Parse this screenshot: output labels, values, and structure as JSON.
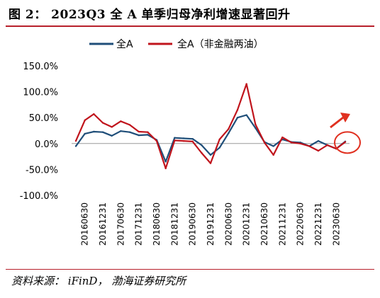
{
  "title": "图 2：  2023Q3 全 A 单季归母净利增速显著回升",
  "source": "资料来源：  iFinD，  渤海证券研究所",
  "colors": {
    "all_a": "#1f4e79",
    "ex_fin": "#c0141c",
    "rule": "#b8202b",
    "highlight": "#e03020"
  },
  "chart_data": {
    "type": "line",
    "title": "",
    "xlabel": "",
    "ylabel": "",
    "ylim": [
      -100,
      150
    ],
    "yticks": [
      150,
      100,
      50,
      0,
      -50,
      -100
    ],
    "ytick_labels": [
      "150.0%",
      "100.0%",
      "50.0%",
      "0.0%",
      "-50.0%",
      "-100.0%"
    ],
    "xtick_labels": [
      "20160630",
      "20161231",
      "20170630",
      "20171231",
      "20180630",
      "20181231",
      "20190630",
      "20191231",
      "20200630",
      "20201231",
      "20210630",
      "20211231",
      "20220630",
      "20221231",
      "20230630"
    ],
    "grid": false,
    "legend_position": "top",
    "x": [
      "2016Q1",
      "2016Q2",
      "2016Q3",
      "2016Q4",
      "2017Q1",
      "2017Q2",
      "2017Q3",
      "2017Q4",
      "2018Q1",
      "2018Q2",
      "2018Q3",
      "2018Q4",
      "2019Q1",
      "2019Q2",
      "2019Q3",
      "2019Q4",
      "2020Q1",
      "2020Q2",
      "2020Q3",
      "2020Q4",
      "2021Q1",
      "2021Q2",
      "2021Q3",
      "2021Q4",
      "2022Q1",
      "2022Q2",
      "2022Q3",
      "2022Q4",
      "2023Q1",
      "2023Q2",
      "2023Q3"
    ],
    "series": [
      {
        "name": "全A",
        "values": [
          -5,
          19,
          23,
          22,
          15,
          24,
          22,
          16,
          17,
          7,
          -35,
          11,
          10,
          9,
          -3,
          -22,
          -8,
          20,
          50,
          55,
          30,
          3,
          -5,
          8,
          3,
          2,
          -5,
          5,
          -3,
          -10,
          4
        ]
      },
      {
        "name": "全A（非金融两油）",
        "values": [
          5,
          45,
          57,
          40,
          32,
          43,
          36,
          23,
          22,
          5,
          -48,
          6,
          5,
          4,
          -18,
          -38,
          8,
          28,
          65,
          115,
          37,
          2,
          -22,
          12,
          2,
          0,
          -5,
          -14,
          -3,
          -10,
          3
        ]
      }
    ]
  }
}
